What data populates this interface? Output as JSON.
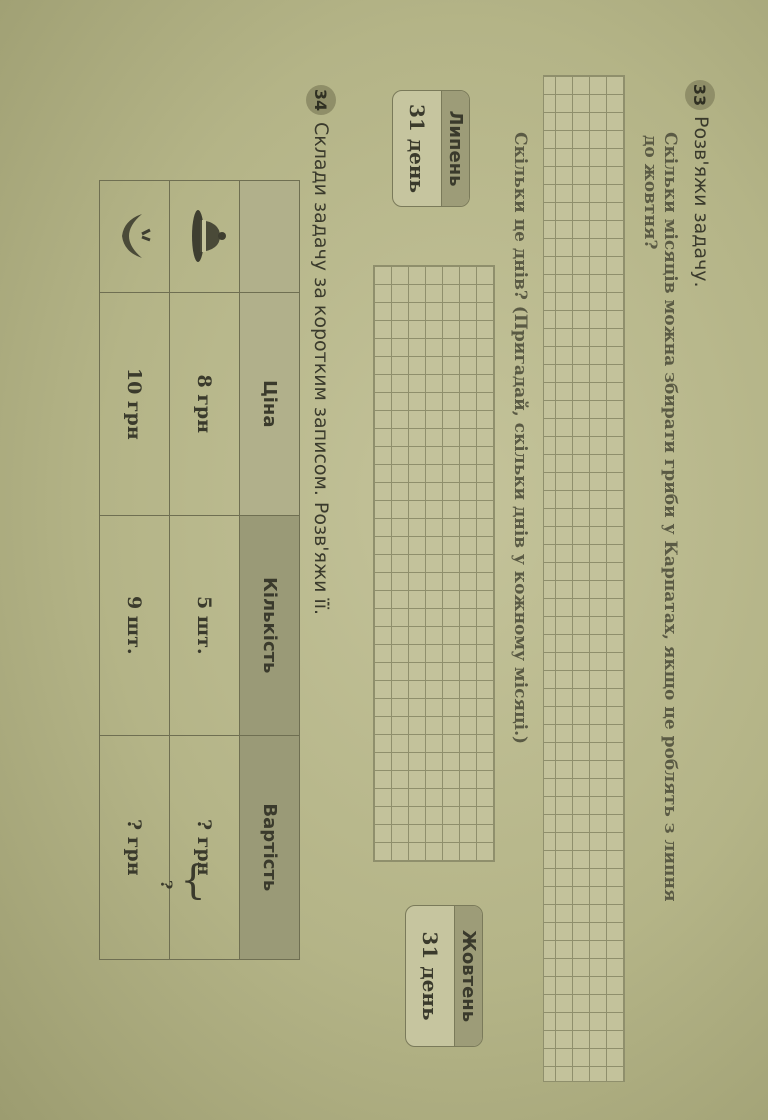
{
  "task33": {
    "number": "33",
    "title": "Розв'яжи задачу.",
    "question_line1": "Скільки місяців можна збирати гриби у Карпатах, якщо це роблять з липня",
    "question_line2": "до жовтня?",
    "question2": "Скільки це днів? (Пригадай, скільки днів у кожному місяці.)",
    "months": [
      {
        "name": "Липень",
        "days": "31 день"
      },
      {
        "name": "Жовтень",
        "days": "31 день"
      }
    ]
  },
  "task34": {
    "number": "34",
    "title": "Склади задачу за коротким записом. Розв'яжи її.",
    "table": {
      "headers": [
        "",
        "Ціна",
        "Кількість",
        "Вартість"
      ],
      "rows": [
        {
          "icon": "hat-icon",
          "price": "8 грн",
          "quantity": "5 шт.",
          "cost": "? грн"
        },
        {
          "icon": "mushroom-basket-icon",
          "price": "10 грн",
          "quantity": "9 шт.",
          "cost": "? грн"
        }
      ],
      "total": "?"
    }
  },
  "colors": {
    "paper": "#b8b88a",
    "ink": "#3a3a2c",
    "header_fill": "#9a9a77"
  }
}
